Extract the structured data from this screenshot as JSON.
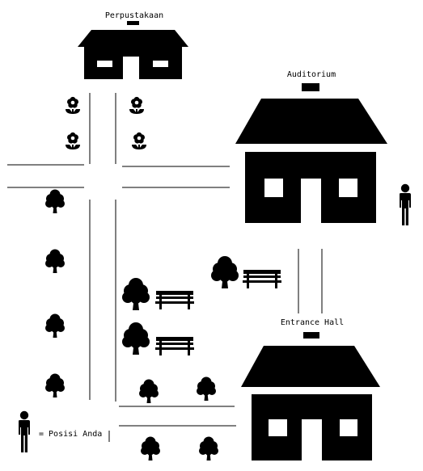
{
  "labels": {
    "library": "Perpustakaan",
    "auditorium": "Auditorium",
    "entrance_hall": "Entrance Hall",
    "legend": "= Posisi Anda"
  },
  "icons": {
    "building": "house-icon",
    "flower": "flower-icon",
    "tree": "tree-icon",
    "bench": "bench-icon",
    "person": "person-icon"
  },
  "colors": {
    "ink": "#000000",
    "background": "#ffffff"
  }
}
